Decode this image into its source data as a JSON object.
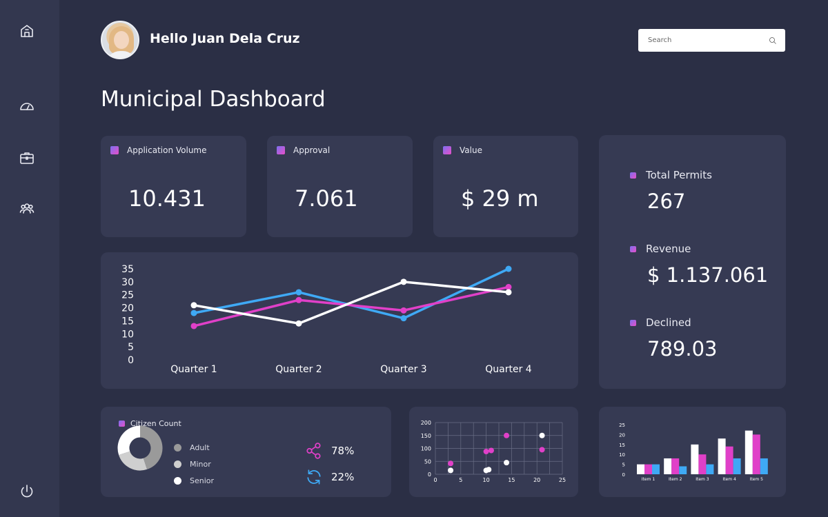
{
  "user": {
    "greeting": "Hello Juan Dela Cruz"
  },
  "search": {
    "placeholder": "Search"
  },
  "page_title": "Municipal Dashboard",
  "sidebar": {
    "items": [
      {
        "icon": "home-icon"
      },
      {
        "icon": "speedometer-icon"
      },
      {
        "icon": "briefcase-icon"
      },
      {
        "icon": "users-icon"
      },
      {
        "icon": "power-icon"
      }
    ]
  },
  "stats": [
    {
      "label": "Application Volume",
      "value": "10.431"
    },
    {
      "label": "Approval",
      "value": "7.061"
    },
    {
      "label": "Value",
      "value": "$ 29 m"
    }
  ],
  "summary": [
    {
      "label": "Total Permits",
      "value": "267"
    },
    {
      "label": "Revenue",
      "value": "$ 1.137.061"
    },
    {
      "label": "Declined",
      "value": "789.03"
    }
  ],
  "citizen": {
    "title": "Citizen Count",
    "legend": [
      {
        "label": "Adult",
        "color": "#9a9a9a"
      },
      {
        "label": "Minor",
        "color": "#cfcfcf"
      },
      {
        "label": "Senior",
        "color": "#ffffff"
      }
    ],
    "donut": [
      45,
      25,
      30
    ],
    "share_pct": "78%",
    "refresh_pct": "22%"
  },
  "colors": {
    "blue": "#3fa9f5",
    "pink": "#e040c8",
    "white": "#ffffff",
    "panel": "#363a53",
    "background": "#2b2f45"
  },
  "chart_data": [
    {
      "type": "line",
      "categories": [
        "Quarter 1",
        "Quarter 2",
        "Quarter 3",
        "Quarter 4"
      ],
      "yticks": [
        0,
        5,
        10,
        15,
        20,
        25,
        30,
        35
      ],
      "ylim": [
        0,
        35
      ],
      "series": [
        {
          "color": "#3fa9f5",
          "values": [
            18,
            26,
            16,
            35
          ]
        },
        {
          "color": "#e040c8",
          "values": [
            13,
            23,
            19,
            28
          ]
        },
        {
          "color": "#ffffff",
          "values": [
            21,
            14,
            30,
            26
          ]
        }
      ]
    },
    {
      "type": "scatter",
      "xlim": [
        0,
        25
      ],
      "ylim": [
        0,
        200
      ],
      "xticks": [
        0,
        5,
        10,
        15,
        20,
        25
      ],
      "yticks": [
        0,
        50,
        100,
        150,
        200
      ],
      "grid": true,
      "series": [
        {
          "color": "#ffffff",
          "points": [
            [
              3,
              15
            ],
            [
              10,
              15
            ],
            [
              10.5,
              18
            ],
            [
              14,
              45
            ],
            [
              21,
              150
            ]
          ]
        },
        {
          "color": "#e040c8",
          "points": [
            [
              3,
              42
            ],
            [
              10,
              88
            ],
            [
              11,
              92
            ],
            [
              14,
              150
            ],
            [
              21,
              95
            ]
          ]
        }
      ]
    },
    {
      "type": "bar",
      "categories": [
        "Item 1",
        "Item 2",
        "Item 3",
        "Item 4",
        "Item 5"
      ],
      "ylim": [
        0,
        25
      ],
      "yticks": [
        0,
        5,
        10,
        15,
        20,
        25
      ],
      "series": [
        {
          "color": "#ffffff",
          "values": [
            5,
            8,
            15,
            18,
            22
          ]
        },
        {
          "color": "#e040c8",
          "values": [
            5,
            8,
            10,
            14,
            20
          ]
        },
        {
          "color": "#3fa9f5",
          "values": [
            5,
            4,
            5,
            8,
            8
          ]
        }
      ]
    }
  ]
}
